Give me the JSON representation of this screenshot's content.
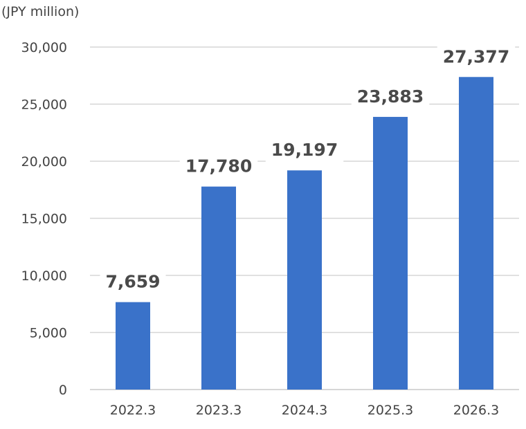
{
  "chart_data": {
    "type": "bar",
    "title": "",
    "unit_label": "(JPY million)",
    "xlabel": "",
    "ylabel": "",
    "categories": [
      "2022.3",
      "2023.3",
      "2024.3",
      "2025.3",
      "2026.3"
    ],
    "values": [
      7659,
      17780,
      19197,
      23883,
      27377
    ],
    "data_labels": [
      "7,659",
      "17,780",
      "19,197",
      "23,883",
      "27,377"
    ],
    "ylim": [
      0,
      30000
    ],
    "yticks": [
      0,
      5000,
      10000,
      15000,
      20000,
      25000,
      30000
    ],
    "ytick_labels": [
      "0",
      "5,000",
      "10,000",
      "15,000",
      "20,000",
      "25,000",
      "30,000"
    ],
    "grid": true,
    "bar_color": "#3a72c9"
  }
}
